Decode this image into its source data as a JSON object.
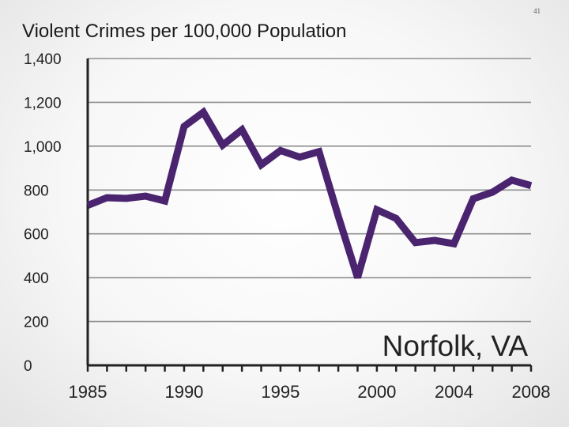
{
  "slide": {
    "page_number": "41"
  },
  "chart_data": {
    "type": "line",
    "title": "Violent Crimes per 100,000 Population",
    "annotation": "Norfolk, VA",
    "xlim": [
      1985,
      2008
    ],
    "ylim": [
      0,
      1400
    ],
    "x_tick_labels": [
      "1985",
      "1990",
      "1995",
      "2000",
      "2004",
      "2008"
    ],
    "x_tick_values": [
      1985,
      1990,
      1995,
      2000,
      2004,
      2008
    ],
    "y_ticks": [
      0,
      200,
      400,
      600,
      800,
      1000,
      1200,
      1400
    ],
    "y_tick_labels": [
      "0",
      "200",
      "400",
      "600",
      "800",
      "1,000",
      "1,200",
      "1,400"
    ],
    "grid": true,
    "line_color": "#4b2470",
    "x": [
      1985,
      1986,
      1987,
      1988,
      1989,
      1990,
      1991,
      1992,
      1993,
      1994,
      1995,
      1996,
      1997,
      1998,
      1999,
      2000,
      2001,
      2002,
      2003,
      2004,
      2005,
      2006,
      2007,
      2008
    ],
    "values": [
      730,
      765,
      762,
      772,
      750,
      1090,
      1155,
      1005,
      1075,
      915,
      980,
      950,
      975,
      680,
      400,
      710,
      670,
      560,
      570,
      555,
      760,
      790,
      845,
      820
    ]
  }
}
